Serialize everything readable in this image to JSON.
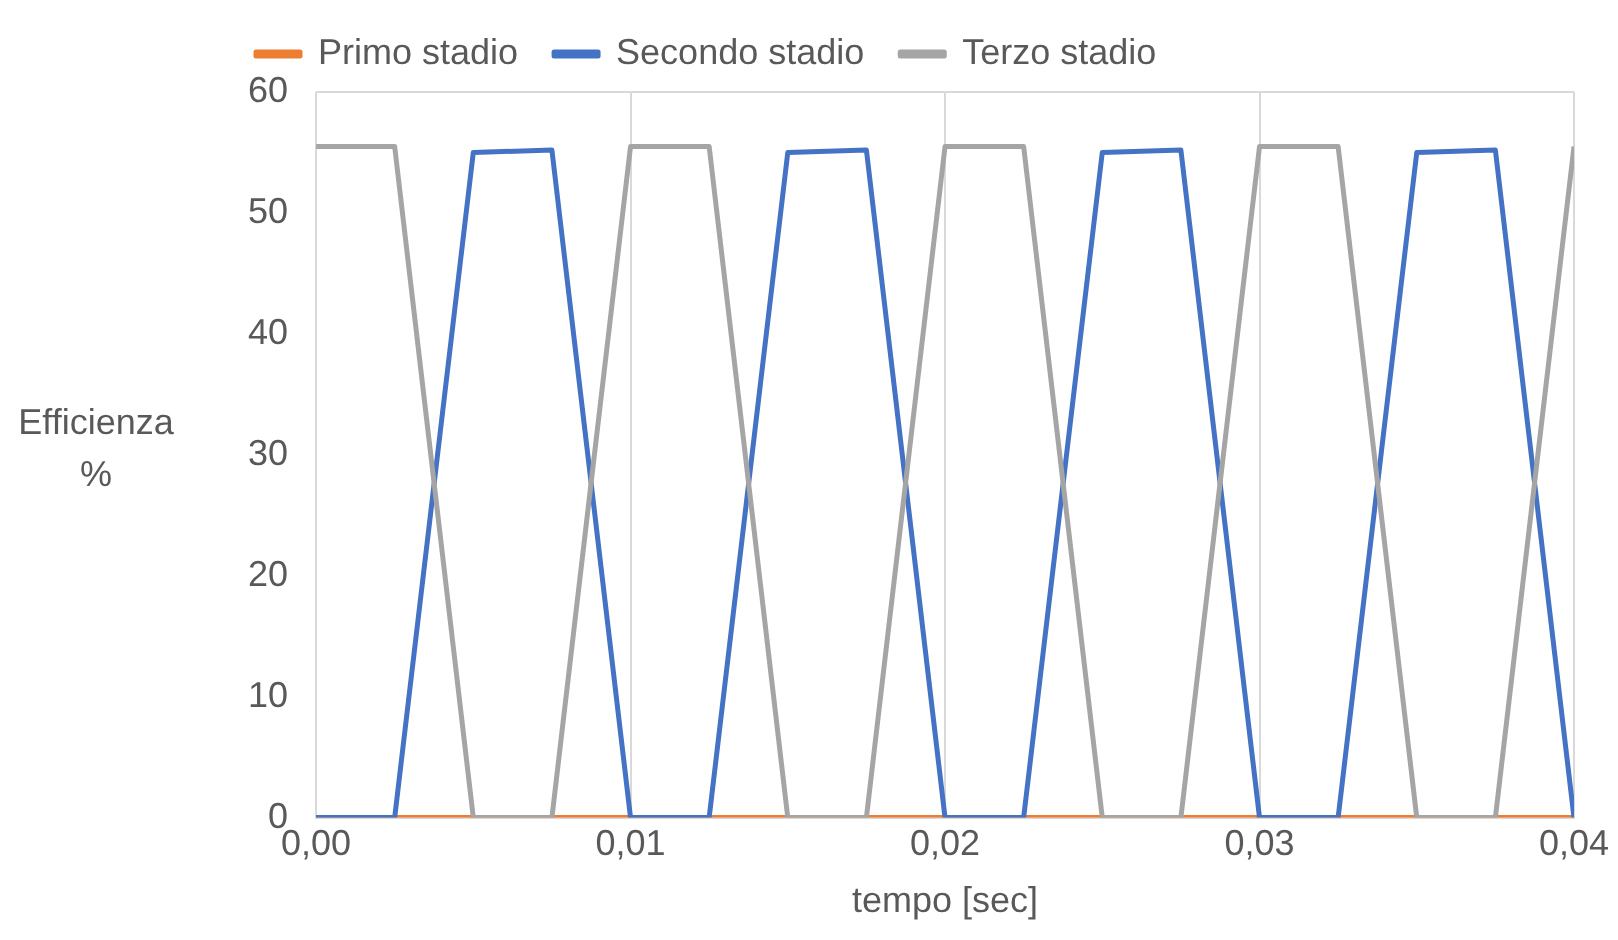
{
  "chart_data": {
    "type": "line",
    "xlabel": "tempo [sec]",
    "ylabel": "Efficienza %",
    "xlim": [
      0,
      0.04
    ],
    "xticks": [
      {
        "value": 0,
        "label": "0,00"
      },
      {
        "value": 0.01,
        "label": "0,01"
      },
      {
        "value": 0.02,
        "label": "0,02"
      },
      {
        "value": 0.03,
        "label": "0,03"
      },
      {
        "value": 0.04,
        "label": "0,04"
      }
    ],
    "ylim": [
      0,
      60
    ],
    "yticks": [
      0,
      10,
      20,
      30,
      40,
      50,
      60
    ],
    "grid": "x",
    "legend": "top",
    "marker": "none",
    "line_style": "solid",
    "x": [
      0,
      0.0025,
      0.005,
      0.0075,
      0.01,
      0.0125,
      0.015,
      0.0175,
      0.02,
      0.0225,
      0.025,
      0.0275,
      0.03,
      0.0325,
      0.035,
      0.0375,
      0.04
    ],
    "series": [
      {
        "name": "Primo stadio",
        "color": "#ed7d31",
        "values": [
          0,
          0,
          0,
          0,
          0,
          0,
          0,
          0,
          0,
          0,
          0,
          0,
          0,
          0,
          0,
          0,
          0
        ]
      },
      {
        "name": "Secondo stadio",
        "color": "#4472c4",
        "values": [
          0,
          0,
          55,
          55.2,
          0,
          0,
          55,
          55.2,
          0,
          0,
          55,
          55.2,
          0,
          0,
          55,
          55.2,
          0
        ]
      },
      {
        "name": "Terzo stadio",
        "color": "#a5a5a5",
        "values": [
          55.5,
          55.5,
          0,
          0,
          55.5,
          55.5,
          0,
          0,
          55.5,
          55.5,
          0,
          0,
          55.5,
          55.5,
          0,
          0,
          55.5
        ]
      }
    ]
  }
}
